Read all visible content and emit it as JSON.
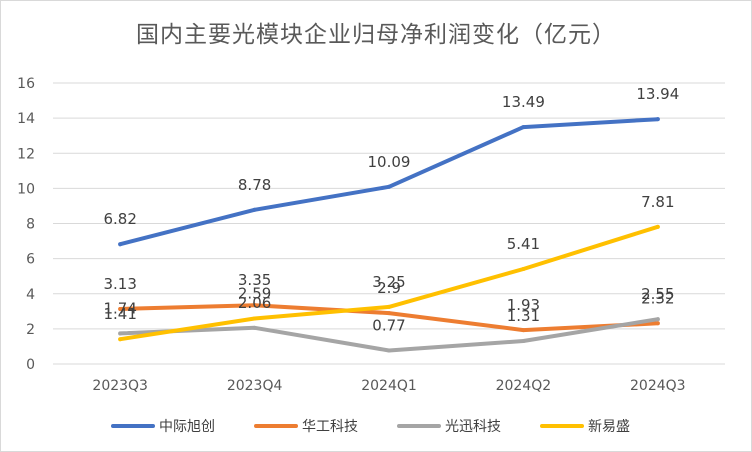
{
  "chart_data": {
    "type": "line",
    "title": "国内主要光模块企业归母净利润变化（亿元）",
    "categories": [
      "2023Q3",
      "2023Q4",
      "2024Q1",
      "2024Q2",
      "2024Q3"
    ],
    "ylim": [
      0,
      16
    ],
    "yticks": [
      0,
      2,
      4,
      6,
      8,
      10,
      12,
      14,
      16
    ],
    "grid": true,
    "legend_position": "bottom",
    "series": [
      {
        "name": "中际旭创",
        "color": "#4472C4",
        "values": [
          6.82,
          8.78,
          10.09,
          13.49,
          13.94
        ],
        "labels": [
          "6.82",
          "8.78",
          "10.09",
          "13.49",
          "13.94"
        ]
      },
      {
        "name": "华工科技",
        "color": "#ED7D31",
        "values": [
          3.13,
          3.35,
          2.9,
          1.93,
          2.32
        ],
        "labels": [
          "3.13",
          "3.35",
          "2.9",
          "1.93",
          "2.32"
        ]
      },
      {
        "name": "光迅科技",
        "color": "#A5A5A5",
        "values": [
          1.74,
          2.06,
          0.77,
          1.31,
          2.55
        ],
        "labels": [
          "1.74",
          "2.06",
          "0.77",
          "1.31",
          "2.55"
        ]
      },
      {
        "name": "新易盛",
        "color": "#FFC000",
        "values": [
          1.41,
          2.59,
          3.25,
          5.41,
          7.81
        ],
        "labels": [
          "1.41",
          "2.59",
          "3.25",
          "5.41",
          "7.81"
        ]
      }
    ]
  }
}
